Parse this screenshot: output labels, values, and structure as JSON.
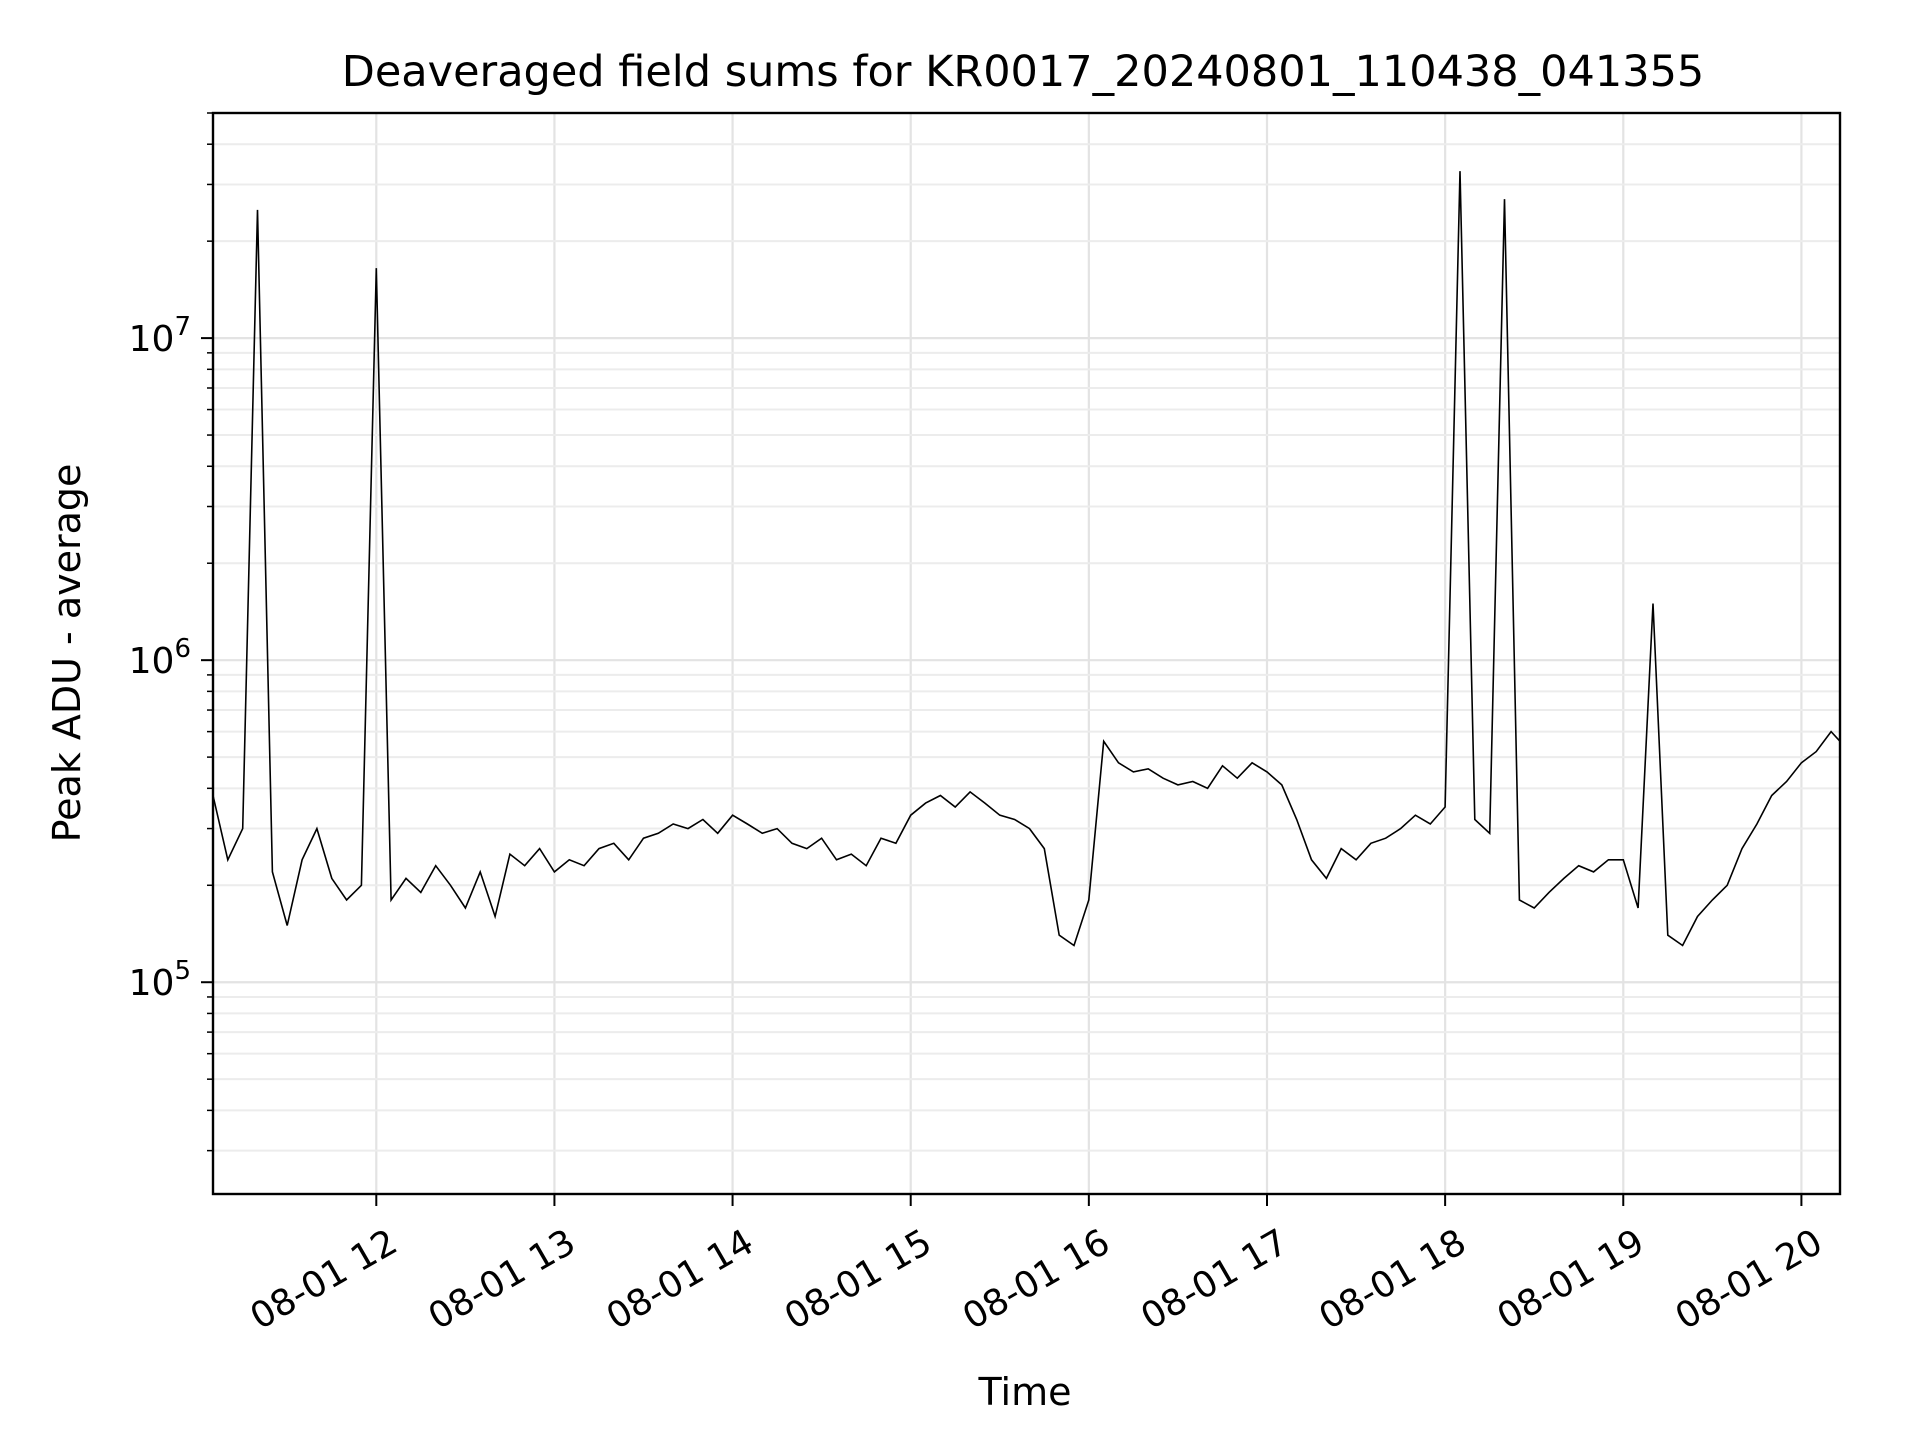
{
  "chart_data": {
    "type": "line",
    "title": "Deaveraged field sums for KR0017_20240801_110438_041355",
    "xlabel": "Time",
    "ylabel": "Peak ADU - average",
    "y_scale": "log",
    "ylim": [
      22000,
      50000000
    ],
    "xlim": [
      "08-01 11:05",
      "08-01 20:13"
    ],
    "grid": true,
    "line_color": "#000000",
    "x_tick_labels": [
      "08-01 12",
      "08-01 13",
      "08-01 14",
      "08-01 15",
      "08-01 16",
      "08-01 17",
      "08-01 18",
      "08-01 19",
      "08-01 20"
    ],
    "x_tick_values": [
      "08-01 12:00",
      "08-01 13:00",
      "08-01 14:00",
      "08-01 15:00",
      "08-01 16:00",
      "08-01 17:00",
      "08-01 18:00",
      "08-01 19:00",
      "08-01 20:00"
    ],
    "y_tick_values": [
      100000,
      1000000,
      10000000
    ],
    "y_tick_labels": [
      {
        "base": "10",
        "exp": "5"
      },
      {
        "base": "10",
        "exp": "6"
      },
      {
        "base": "10",
        "exp": "7"
      }
    ],
    "series": [
      {
        "x": [
          "08-01 11:05",
          "08-01 11:10",
          "08-01 11:15",
          "08-01 11:20",
          "08-01 11:25",
          "08-01 11:30",
          "08-01 11:35",
          "08-01 11:40",
          "08-01 11:45",
          "08-01 11:50",
          "08-01 11:55",
          "08-01 12:00",
          "08-01 12:05",
          "08-01 12:10",
          "08-01 12:15",
          "08-01 12:20",
          "08-01 12:25",
          "08-01 12:30",
          "08-01 12:35",
          "08-01 12:40",
          "08-01 12:45",
          "08-01 12:50",
          "08-01 12:55",
          "08-01 13:00",
          "08-01 13:05",
          "08-01 13:10",
          "08-01 13:15",
          "08-01 13:20",
          "08-01 13:25",
          "08-01 13:30",
          "08-01 13:35",
          "08-01 13:40",
          "08-01 13:45",
          "08-01 13:50",
          "08-01 13:55",
          "08-01 14:00",
          "08-01 14:05",
          "08-01 14:10",
          "08-01 14:15",
          "08-01 14:20",
          "08-01 14:25",
          "08-01 14:30",
          "08-01 14:35",
          "08-01 14:40",
          "08-01 14:45",
          "08-01 14:50",
          "08-01 14:55",
          "08-01 15:00",
          "08-01 15:05",
          "08-01 15:10",
          "08-01 15:15",
          "08-01 15:20",
          "08-01 15:25",
          "08-01 15:30",
          "08-01 15:35",
          "08-01 15:40",
          "08-01 15:45",
          "08-01 15:50",
          "08-01 15:55",
          "08-01 16:00",
          "08-01 16:05",
          "08-01 16:10",
          "08-01 16:15",
          "08-01 16:20",
          "08-01 16:25",
          "08-01 16:30",
          "08-01 16:35",
          "08-01 16:40",
          "08-01 16:45",
          "08-01 16:50",
          "08-01 16:55",
          "08-01 17:00",
          "08-01 17:05",
          "08-01 17:10",
          "08-01 17:15",
          "08-01 17:20",
          "08-01 17:25",
          "08-01 17:30",
          "08-01 17:35",
          "08-01 17:40",
          "08-01 17:45",
          "08-01 17:50",
          "08-01 17:55",
          "08-01 18:00",
          "08-01 18:05",
          "08-01 18:10",
          "08-01 18:15",
          "08-01 18:20",
          "08-01 18:25",
          "08-01 18:30",
          "08-01 18:35",
          "08-01 18:40",
          "08-01 18:45",
          "08-01 18:50",
          "08-01 18:55",
          "08-01 19:00",
          "08-01 19:05",
          "08-01 19:10",
          "08-01 19:15",
          "08-01 19:20",
          "08-01 19:25",
          "08-01 19:30",
          "08-01 19:35",
          "08-01 19:40",
          "08-01 19:45",
          "08-01 19:50",
          "08-01 19:55",
          "08-01 20:00",
          "08-01 20:05",
          "08-01 20:10",
          "08-01 20:13"
        ],
        "values": [
          380000,
          240000,
          300000,
          25000000,
          220000,
          150000,
          240000,
          300000,
          210000,
          180000,
          200000,
          16500000,
          180000,
          210000,
          190000,
          230000,
          200000,
          170000,
          220000,
          160000,
          250000,
          230000,
          260000,
          220000,
          240000,
          230000,
          260000,
          270000,
          240000,
          280000,
          290000,
          310000,
          300000,
          320000,
          290000,
          330000,
          310000,
          290000,
          300000,
          270000,
          260000,
          280000,
          240000,
          250000,
          230000,
          280000,
          270000,
          330000,
          360000,
          380000,
          350000,
          390000,
          360000,
          330000,
          320000,
          300000,
          260000,
          140000,
          130000,
          180000,
          560000,
          480000,
          450000,
          460000,
          430000,
          410000,
          420000,
          400000,
          470000,
          430000,
          480000,
          450000,
          410000,
          320000,
          240000,
          210000,
          260000,
          240000,
          270000,
          280000,
          300000,
          330000,
          310000,
          350000,
          33000000,
          320000,
          290000,
          27000000,
          180000,
          170000,
          190000,
          210000,
          230000,
          220000,
          240000,
          240000,
          170000,
          1500000,
          140000,
          130000,
          160000,
          180000,
          200000,
          260000,
          310000,
          380000,
          420000,
          480000,
          520000,
          600000,
          560000
        ]
      }
    ]
  }
}
